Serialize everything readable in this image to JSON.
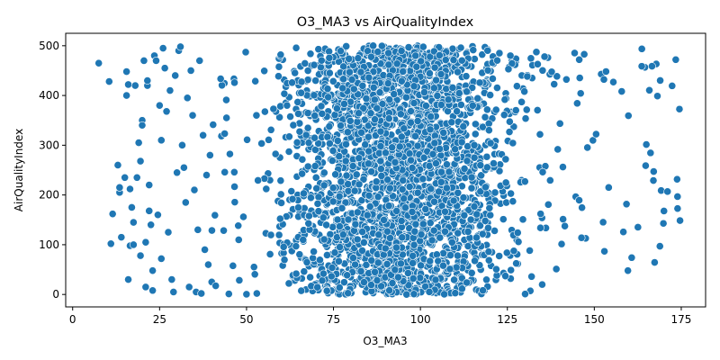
{
  "chart_data": {
    "type": "scatter",
    "title": "O3_MA3 vs AirQualityIndex",
    "xlabel": "O3_MA3",
    "ylabel": "AirQualityIndex",
    "xlim": [
      -2,
      182
    ],
    "ylim": [
      -25,
      525
    ],
    "xticks": [
      0,
      25,
      50,
      75,
      100,
      125,
      150,
      175
    ],
    "yticks": [
      0,
      100,
      200,
      300,
      400,
      500
    ],
    "xtick_labels": [
      "0",
      "25",
      "50",
      "75",
      "100",
      "125",
      "150",
      "175"
    ],
    "ytick_labels": [
      "0",
      "100",
      "200",
      "300",
      "400",
      "500"
    ],
    "grid": false,
    "legend": "none",
    "point_color": "#1f77b4",
    "point_edge_color": "#ffffff",
    "series": [
      {
        "points": [
          [
            7.5,
            465
          ],
          [
            10.5,
            428
          ],
          [
            11,
            102
          ],
          [
            11.5,
            162
          ],
          [
            13,
            260
          ],
          [
            13.5,
            205
          ],
          [
            13.5,
            215
          ],
          [
            14,
            115
          ],
          [
            15,
            235
          ],
          [
            15.5,
            400
          ],
          [
            15.5,
            448
          ],
          [
            16,
            422
          ],
          [
            16,
            30
          ],
          [
            16.5,
            212
          ],
          [
            16.5,
            98
          ],
          [
            17,
            175
          ],
          [
            17.5,
            100
          ],
          [
            17.5,
            145
          ],
          [
            18,
            420
          ],
          [
            18.5,
            235
          ],
          [
            19,
            305
          ],
          [
            19.5,
            268
          ],
          [
            19.5,
            78
          ],
          [
            20,
            350
          ],
          [
            20,
            340
          ],
          [
            20.5,
            470
          ],
          [
            21,
            15
          ],
          [
            21,
            105
          ],
          [
            21.5,
            420
          ],
          [
            21.5,
            430
          ],
          [
            22,
            220
          ],
          [
            22,
            168
          ],
          [
            22.5,
            140
          ],
          [
            23,
            48
          ],
          [
            23,
            8
          ],
          [
            23.5,
            480
          ],
          [
            24,
            470
          ],
          [
            24.5,
            160
          ],
          [
            25,
            380
          ],
          [
            25.5,
            310
          ],
          [
            25.5,
            72
          ],
          [
            26,
            495
          ],
          [
            26.5,
            455
          ],
          [
            27,
            368
          ],
          [
            27.5,
            125
          ],
          [
            28,
            410
          ],
          [
            28.5,
            30
          ],
          [
            29,
            5
          ],
          [
            29.5,
            440
          ],
          [
            30,
            245
          ],
          [
            30.5,
            490
          ],
          [
            31,
            498
          ],
          [
            31.5,
            300
          ],
          [
            32,
            255
          ],
          [
            32.5,
            185
          ],
          [
            33,
            395
          ],
          [
            33.5,
            15
          ],
          [
            34,
            450
          ],
          [
            34.5,
            360
          ],
          [
            35,
            210
          ],
          [
            35.5,
            5
          ],
          [
            36,
            130
          ],
          [
            36.5,
            470
          ],
          [
            37,
            2
          ],
          [
            37.5,
            320
          ],
          [
            38,
            90
          ],
          [
            38.5,
            240
          ],
          [
            39,
            60
          ],
          [
            39.5,
            280
          ],
          [
            40,
            25
          ]
        ]
      }
    ]
  }
}
